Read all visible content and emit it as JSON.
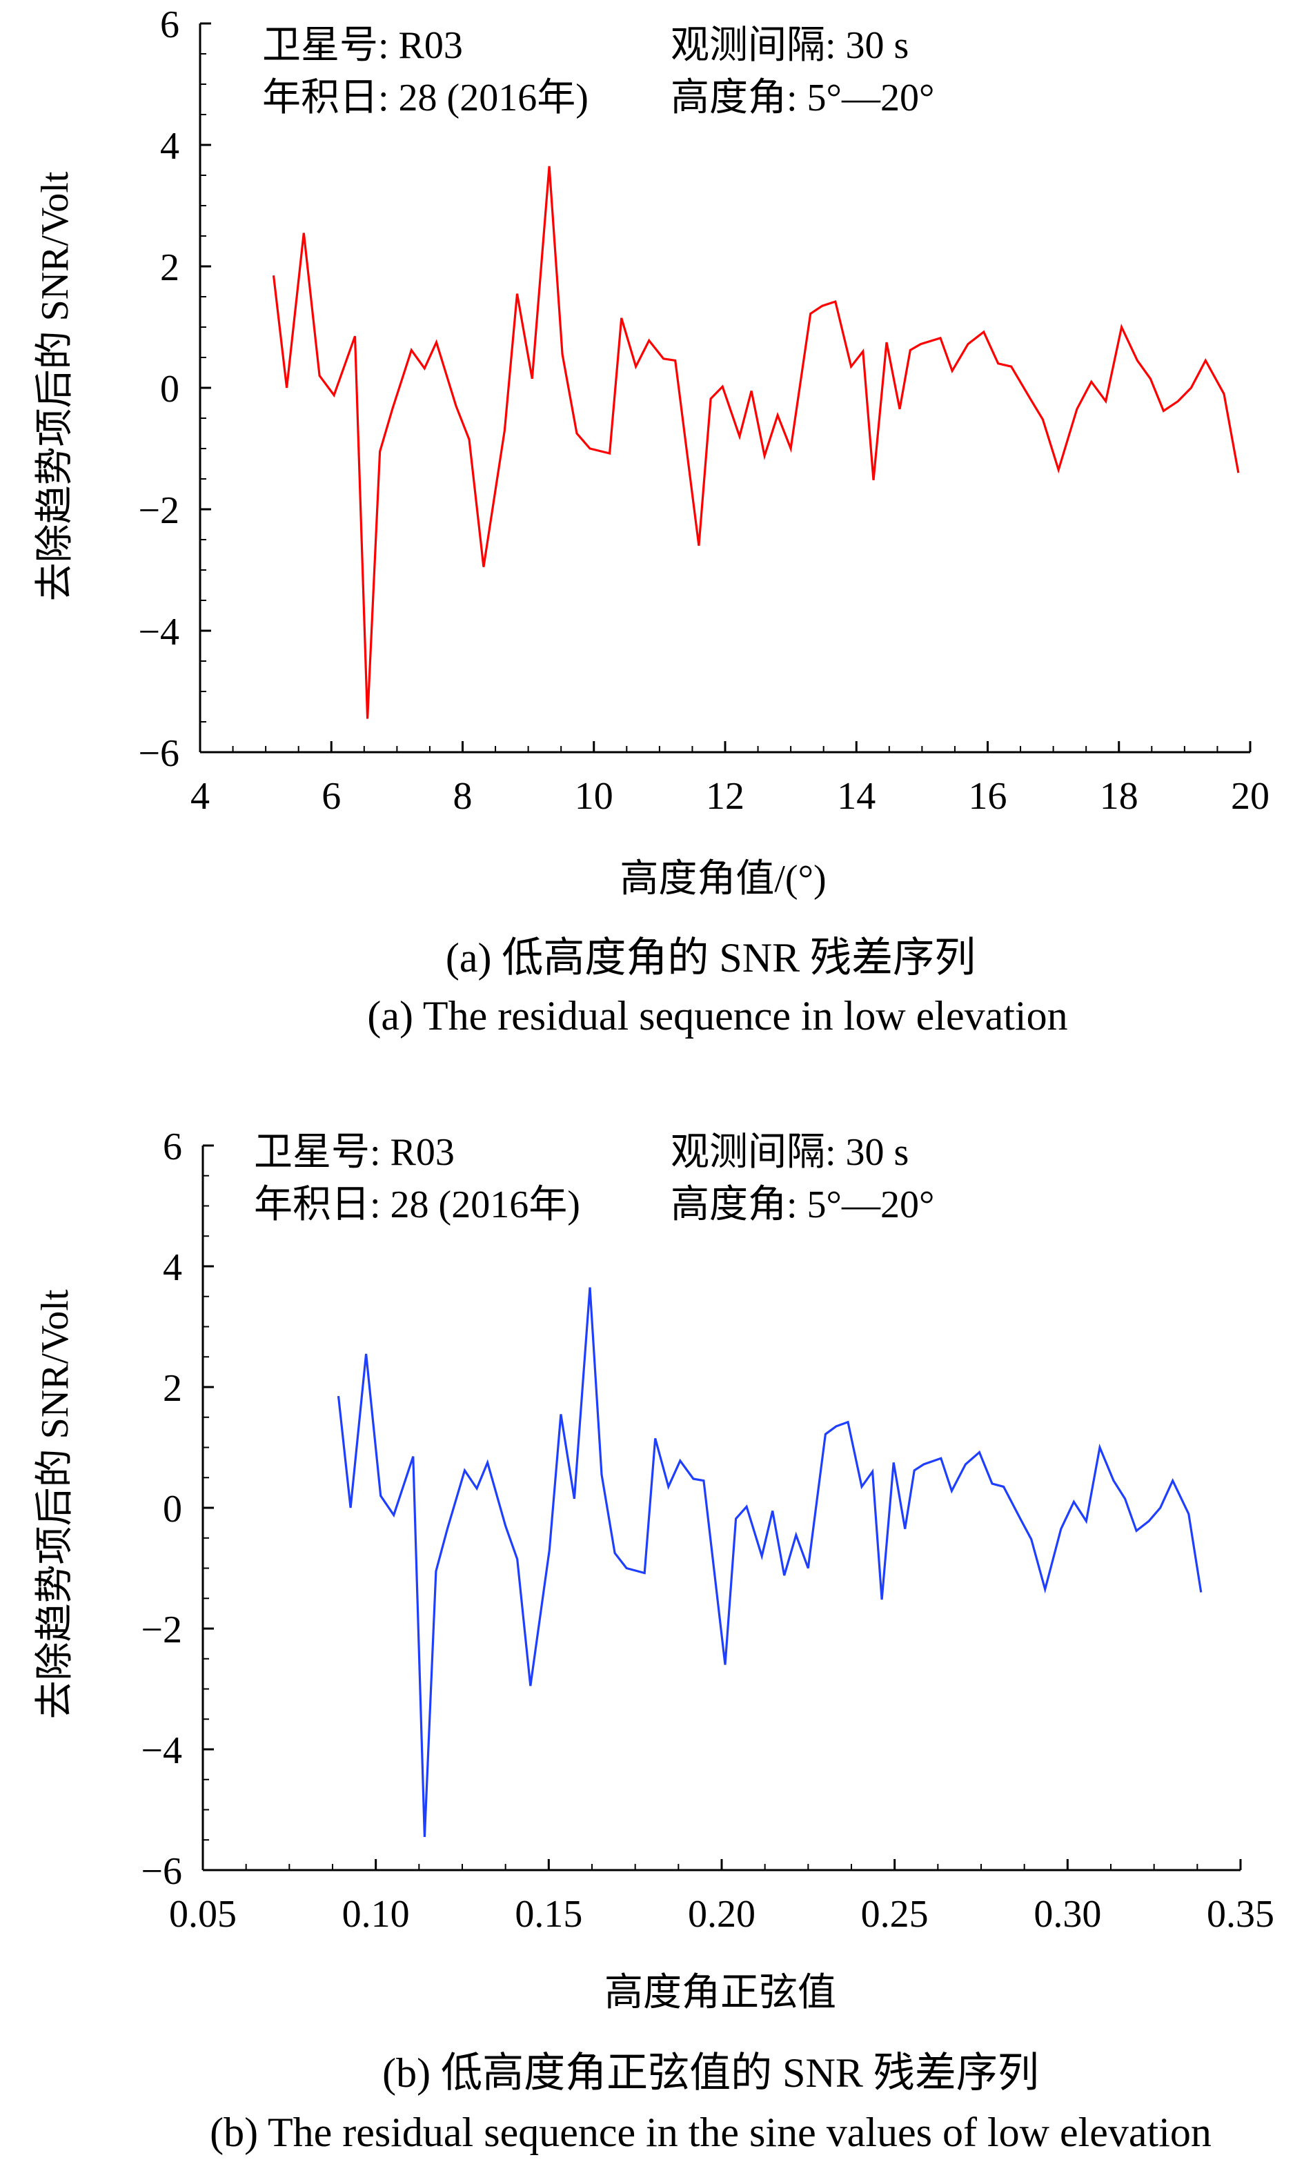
{
  "chart_data": [
    {
      "type": "line",
      "color": "#ff0000",
      "xlabel": "高度角值/(°)",
      "ylabel": "去除趋势项后的 SNR/Volt",
      "xlim": [
        4,
        20
      ],
      "ylim": [
        -6,
        6
      ],
      "xticks": [
        4,
        6,
        8,
        10,
        12,
        14,
        16,
        18,
        20
      ],
      "xtick_labels": [
        "4",
        "6",
        "8",
        "10",
        "12",
        "14",
        "16",
        "18",
        "20"
      ],
      "yticks": [
        -6,
        -4,
        -2,
        0,
        2,
        4,
        6
      ],
      "ytick_labels": [
        "−6",
        "−4",
        "−2",
        "0",
        "2",
        "4",
        "6"
      ],
      "annotations": [
        "卫星号: R03",
        "观测间隔: 30 s",
        "年积日: 28 (2016年)",
        "高度角: 5°—20°"
      ],
      "caption_cn": "(a) 低高度角的 SNR 残差序列",
      "caption_en": "(a) The residual sequence in low elevation",
      "x": [
        5.12,
        5.32,
        5.58,
        5.82,
        6.04,
        6.36,
        6.55,
        6.74,
        6.93,
        7.22,
        7.42,
        7.6,
        7.9,
        8.1,
        8.32,
        8.64,
        8.83,
        9.06,
        9.32,
        9.52,
        9.74,
        9.94,
        10.24,
        10.42,
        10.64,
        10.84,
        11.06,
        11.24,
        11.6,
        11.78,
        11.96,
        12.22,
        12.4,
        12.6,
        12.8,
        13.0,
        13.3,
        13.48,
        13.68,
        13.92,
        14.1,
        14.26,
        14.46,
        14.66,
        14.82,
        14.98,
        15.28,
        15.46,
        15.7,
        15.94,
        16.16,
        16.36,
        16.66,
        16.84,
        17.08,
        17.36,
        17.58,
        17.8,
        18.04,
        18.28,
        18.48,
        18.68,
        18.9,
        19.1,
        19.32,
        19.6,
        19.82
      ],
      "values": [
        1.85,
        0.0,
        2.55,
        0.2,
        -0.12,
        0.85,
        -5.45,
        -1.05,
        -0.35,
        0.62,
        0.32,
        0.75,
        -0.3,
        -0.85,
        -2.95,
        -0.7,
        1.55,
        0.15,
        3.65,
        0.55,
        -0.75,
        -1.0,
        -1.08,
        1.15,
        0.35,
        0.78,
        0.48,
        0.45,
        -2.6,
        -0.18,
        0.02,
        -0.8,
        -0.05,
        -1.12,
        -0.45,
        -1.0,
        1.22,
        1.35,
        1.42,
        0.35,
        0.6,
        -1.52,
        0.75,
        -0.35,
        0.62,
        0.72,
        0.82,
        0.28,
        0.72,
        0.92,
        0.4,
        0.35,
        -0.2,
        -0.52,
        -1.35,
        -0.35,
        0.1,
        -0.22,
        1.0,
        0.45,
        0.15,
        -0.38,
        -0.22,
        0.0,
        0.45,
        -0.1,
        -1.4
      ]
    },
    {
      "type": "line",
      "color": "#1f3fff",
      "xlabel": "高度角正弦值",
      "ylabel": "去除趋势项后的 SNR/Volt",
      "xlim": [
        0.05,
        0.35
      ],
      "ylim": [
        -6,
        6
      ],
      "xticks": [
        0.05,
        0.1,
        0.15,
        0.2,
        0.25,
        0.3,
        0.35
      ],
      "xtick_labels": [
        "0.05",
        "0.10",
        "0.15",
        "0.20",
        "0.25",
        "0.30",
        "0.35"
      ],
      "yticks": [
        -6,
        -4,
        -2,
        0,
        2,
        4,
        6
      ],
      "ytick_labels": [
        "−6",
        "−4",
        "−2",
        "0",
        "2",
        "4",
        "6"
      ],
      "annotations": [
        "卫星号:  R03",
        "观测间隔: 30 s",
        "年积日: 28 (2016年)",
        "高度角: 5°—20°"
      ],
      "caption_cn": "(b) 低高度角正弦值的 SNR 残差序列",
      "caption_en": "(b) The residual sequence in the sine values of low elevation",
      "x": [
        0.0892,
        0.0927,
        0.0972,
        0.1014,
        0.1052,
        0.1108,
        0.1141,
        0.1174,
        0.1207,
        0.1257,
        0.1292,
        0.1323,
        0.1375,
        0.1409,
        0.1447,
        0.1502,
        0.1535,
        0.1574,
        0.1619,
        0.1653,
        0.1691,
        0.1725,
        0.1777,
        0.1808,
        0.1846,
        0.188,
        0.1918,
        0.1948,
        0.201,
        0.2041,
        0.2072,
        0.2116,
        0.2147,
        0.2181,
        0.2215,
        0.225,
        0.23,
        0.2331,
        0.2365,
        0.2405,
        0.2436,
        0.2463,
        0.2497,
        0.253,
        0.2557,
        0.2584,
        0.2634,
        0.2665,
        0.2705,
        0.2745,
        0.2782,
        0.2815,
        0.2865,
        0.2895,
        0.2935,
        0.2981,
        0.3018,
        0.3054,
        0.3093,
        0.3133,
        0.3166,
        0.3199,
        0.3235,
        0.3268,
        0.3304,
        0.335,
        0.3386
      ],
      "values": [
        1.85,
        0.0,
        2.55,
        0.2,
        -0.12,
        0.85,
        -5.45,
        -1.05,
        -0.35,
        0.62,
        0.32,
        0.75,
        -0.3,
        -0.85,
        -2.95,
        -0.7,
        1.55,
        0.15,
        3.65,
        0.55,
        -0.75,
        -1.0,
        -1.08,
        1.15,
        0.35,
        0.78,
        0.48,
        0.45,
        -2.6,
        -0.18,
        0.02,
        -0.8,
        -0.05,
        -1.12,
        -0.45,
        -1.0,
        1.22,
        1.35,
        1.42,
        0.35,
        0.6,
        -1.52,
        0.75,
        -0.35,
        0.62,
        0.72,
        0.82,
        0.28,
        0.72,
        0.92,
        0.4,
        0.35,
        -0.2,
        -0.52,
        -1.35,
        -0.35,
        0.1,
        -0.22,
        1.0,
        0.45,
        0.15,
        -0.38,
        -0.22,
        0.0,
        0.45,
        -0.1,
        -1.4
      ]
    }
  ]
}
